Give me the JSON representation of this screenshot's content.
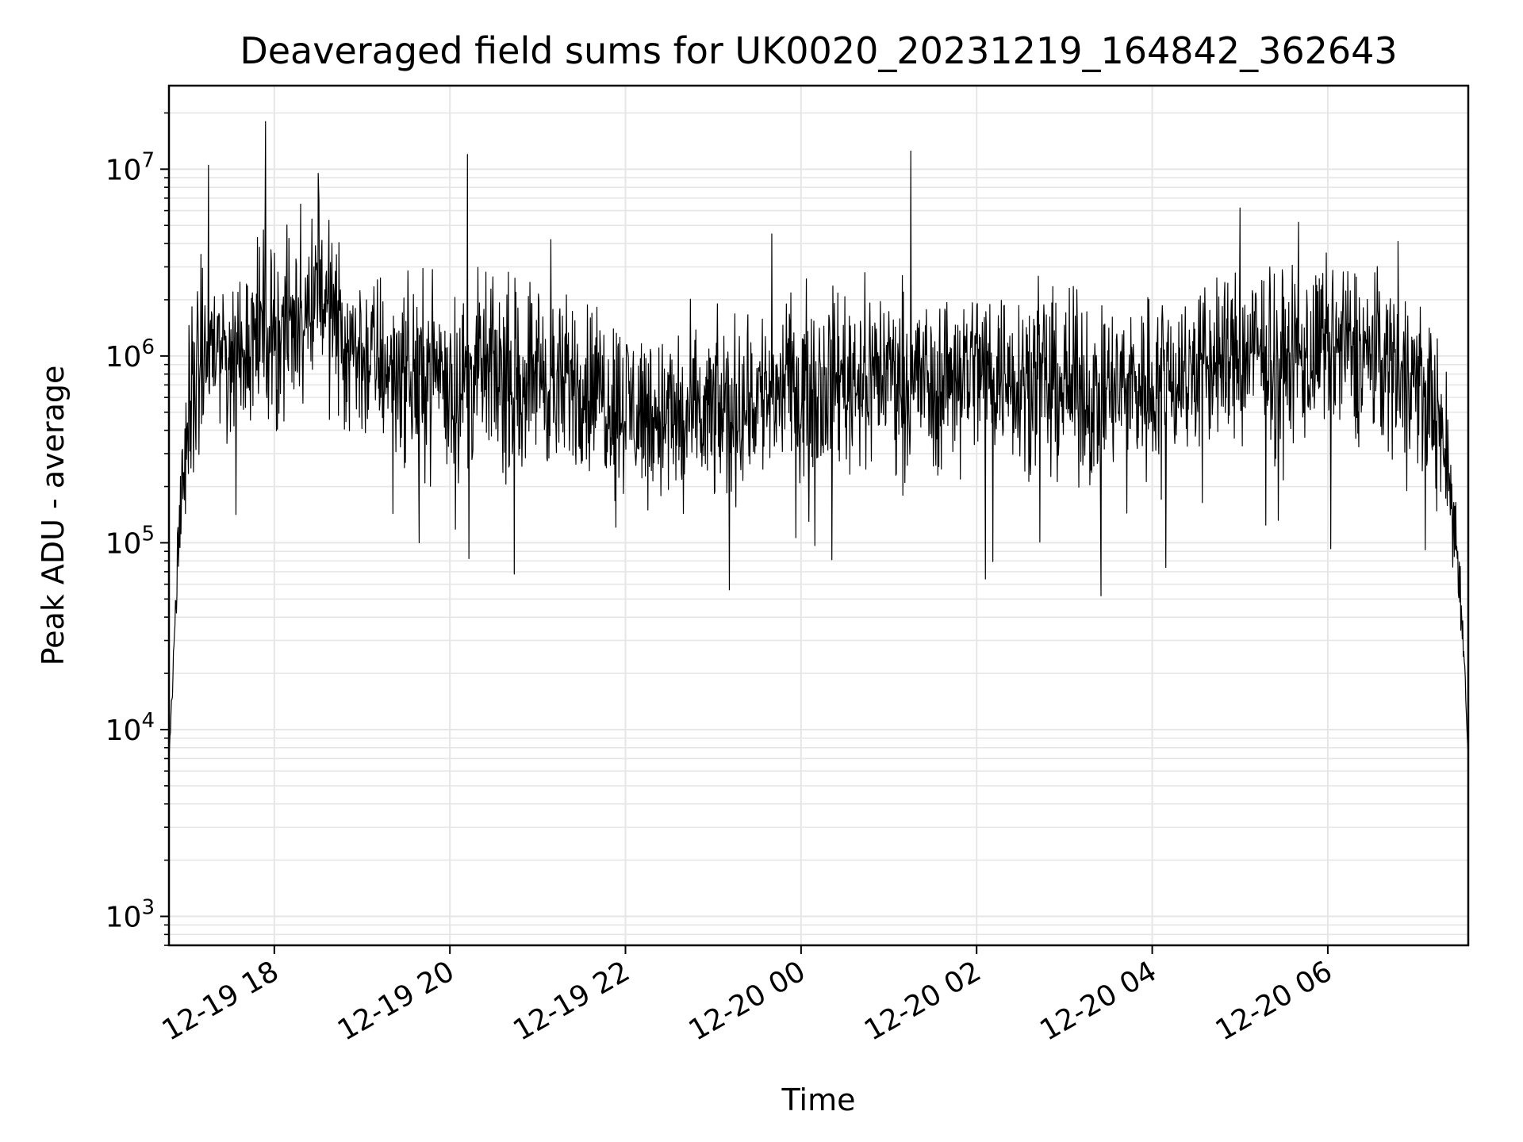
{
  "chart_data": {
    "type": "line",
    "title": "Deaveraged field sums for UK0020_20231219_164842_362643",
    "xlabel": "Time",
    "ylabel": "Peak ADU - average",
    "x_unit": "datetime",
    "xlim": [
      "2023-12-19 16:48",
      "2023-12-20 07:36"
    ],
    "ylim": [
      700,
      28000000
    ],
    "y_scale": "log",
    "grid": true,
    "minor_grid": true,
    "line_color": "#000000",
    "grid_color": "#e6e6e6",
    "x_ticks": [
      {
        "value": "2023-12-19 18:00",
        "label": "12-19 18"
      },
      {
        "value": "2023-12-19 20:00",
        "label": "12-19 20"
      },
      {
        "value": "2023-12-19 22:00",
        "label": "12-19 22"
      },
      {
        "value": "2023-12-20 00:00",
        "label": "12-20 00"
      },
      {
        "value": "2023-12-20 02:00",
        "label": "12-20 02"
      },
      {
        "value": "2023-12-20 04:00",
        "label": "12-20 04"
      },
      {
        "value": "2023-12-20 06:00",
        "label": "12-20 06"
      }
    ],
    "y_ticks": [
      {
        "value": 1000,
        "base": "10",
        "exp": "3"
      },
      {
        "value": 10000,
        "base": "10",
        "exp": "4"
      },
      {
        "value": 100000,
        "base": "10",
        "exp": "5"
      },
      {
        "value": 1000000,
        "base": "10",
        "exp": "6"
      },
      {
        "value": 10000000,
        "base": "10",
        "exp": "7"
      }
    ],
    "series": [
      {
        "x": [
          "2023-12-19 16:48",
          "2023-12-19 16:50",
          "2023-12-19 16:52",
          "2023-12-19 16:55",
          "2023-12-19 16:58",
          "2023-12-19 17:02",
          "2023-12-19 17:06",
          "2023-12-19 17:10",
          "2023-12-19 17:14",
          "2023-12-19 17:20",
          "2023-12-19 17:24",
          "2023-12-19 17:28",
          "2023-12-19 17:36",
          "2023-12-19 17:45",
          "2023-12-19 17:52",
          "2023-12-19 17:55",
          "2023-12-19 18:05",
          "2023-12-19 18:20",
          "2023-12-19 18:25",
          "2023-12-19 18:28",
          "2023-12-19 18:31",
          "2023-12-19 18:36",
          "2023-12-19 18:48",
          "2023-12-19 19:00",
          "2023-12-19 19:20",
          "2023-12-19 19:35",
          "2023-12-19 19:50",
          "2023-12-19 20:05",
          "2023-12-19 20:12",
          "2023-12-19 20:20",
          "2023-12-19 20:45",
          "2023-12-19 21:00",
          "2023-12-19 21:15",
          "2023-12-19 21:22",
          "2023-12-19 21:35",
          "2023-12-19 22:00",
          "2023-12-19 22:15",
          "2023-12-19 22:40",
          "2023-12-19 23:10",
          "2023-12-19 23:25",
          "2023-12-19 23:45",
          "2023-12-20 00:00",
          "2023-12-20 00:30",
          "2023-12-20 01:00",
          "2023-12-20 01:15",
          "2023-12-20 01:30",
          "2023-12-20 01:50",
          "2023-12-20 02:10",
          "2023-12-20 02:30",
          "2023-12-20 03:00",
          "2023-12-20 03:25",
          "2023-12-20 03:45",
          "2023-12-20 04:15",
          "2023-12-20 04:40",
          "2023-12-20 05:00",
          "2023-12-20 05:15",
          "2023-12-20 05:25",
          "2023-12-20 05:40",
          "2023-12-20 06:00",
          "2023-12-20 06:20",
          "2023-12-20 06:40",
          "2023-12-20 06:50",
          "2023-12-20 07:05",
          "2023-12-20 07:15",
          "2023-12-20 07:22",
          "2023-12-20 07:28",
          "2023-12-20 07:32",
          "2023-12-20 07:36"
        ],
        "y": [
          7000,
          15000,
          35000,
          120000,
          250000,
          500000,
          700000,
          900000,
          1000000,
          1200000,
          1100000,
          1000000,
          1100000,
          1300000,
          1400000,
          1500000,
          1300000,
          1600000,
          2000000,
          2500000,
          2800000,
          1800000,
          1300000,
          1000000,
          900000,
          800000,
          900000,
          700000,
          750000,
          850000,
          800000,
          900000,
          600000,
          750000,
          700000,
          550000,
          500000,
          450000,
          500000,
          600000,
          650000,
          700000,
          800000,
          850000,
          800000,
          700000,
          900000,
          850000,
          800000,
          700000,
          600000,
          700000,
          800000,
          900000,
          1000000,
          1050000,
          1000000,
          950000,
          1100000,
          1050000,
          950000,
          850000,
          700000,
          500000,
          250000,
          100000,
          40000,
          7000
        ],
        "noise_log10": 0.35,
        "spikes": [
          {
            "x": "2023-12-19 17:15",
            "y": 10500000
          },
          {
            "x": "2023-12-19 17:54",
            "y": 18000000
          },
          {
            "x": "2023-12-19 18:18",
            "y": 6500000
          },
          {
            "x": "2023-12-19 18:30",
            "y": 9500000
          },
          {
            "x": "2023-12-19 20:12",
            "y": 12000000
          },
          {
            "x": "2023-12-19 21:09",
            "y": 4200000
          },
          {
            "x": "2023-12-19 23:40",
            "y": 4500000
          },
          {
            "x": "2023-12-20 01:15",
            "y": 12500000
          },
          {
            "x": "2023-12-20 05:00",
            "y": 6200000
          },
          {
            "x": "2023-12-20 05:40",
            "y": 5200000
          },
          {
            "x": "2023-12-20 06:48",
            "y": 4100000
          },
          {
            "x": "2023-12-19 19:39",
            "y": 100000
          },
          {
            "x": "2023-12-19 20:44",
            "y": 68000
          },
          {
            "x": "2023-12-19 23:11",
            "y": 56000
          },
          {
            "x": "2023-12-20 02:06",
            "y": 64000
          },
          {
            "x": "2023-12-20 03:25",
            "y": 52000
          },
          {
            "x": "2023-12-20 06:02",
            "y": 93000
          }
        ]
      }
    ]
  }
}
